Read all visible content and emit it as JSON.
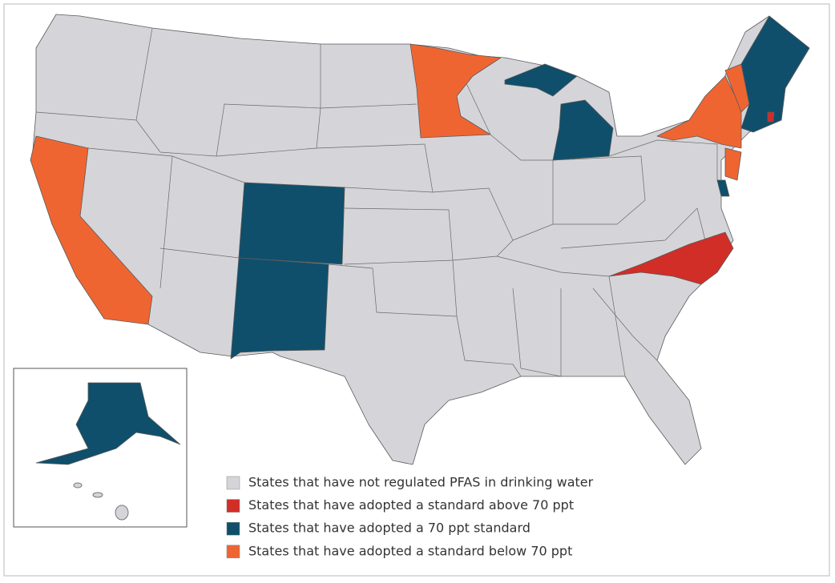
{
  "legend": {
    "items": [
      {
        "label": "States that have not regulated PFAS in drinking water",
        "color": "#d5d5d9"
      },
      {
        "label": "States that have adopted a standard above 70 ppt",
        "color": "#d12e27"
      },
      {
        "label": "States that have adopted a 70 ppt standard",
        "color": "#0f4f6b"
      },
      {
        "label": "States that have adopted a standard below 70 ppt",
        "color": "#ef6532"
      }
    ]
  }
}
